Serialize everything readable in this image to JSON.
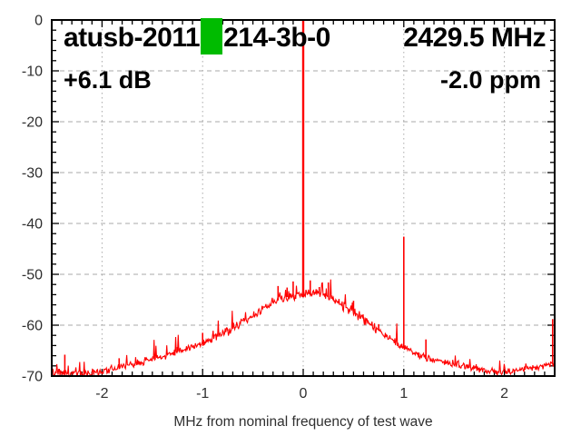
{
  "header": {
    "title_prefix": "atusb-2011",
    "title_suffix": "214-3b-0",
    "center_frequency": "2429.5 MHz",
    "gain": "+6.1 dB",
    "ppm_offset": "-2.0 ppm",
    "marker_color": "#00bb00"
  },
  "chart_data": {
    "type": "line",
    "title": "atusb-2011 [green marker] 214-3b-0 — 2429.5 MHz",
    "xlabel": "MHz from nominal frequency of test wave",
    "ylabel": "",
    "x_range": [
      -2.5,
      2.5
    ],
    "y_range": [
      -70,
      0
    ],
    "x_tick_values": [
      -2,
      -1,
      0,
      1,
      2
    ],
    "x_tick_labels": [
      "-2",
      "-1",
      "0",
      "1",
      "2"
    ],
    "x_minor_step": 0.1,
    "y_tick_values": [
      0,
      -10,
      -20,
      -30,
      -40,
      -50,
      -60,
      -70
    ],
    "y_tick_labels": [
      "0",
      "-10",
      "-20",
      "-30",
      "-40",
      "-50",
      "-60",
      "-70"
    ],
    "y_minor_step": 2,
    "y_grid_values": [
      -10,
      -20,
      -30,
      -40,
      -50,
      -60
    ],
    "grid_on": true,
    "legend": "none",
    "trace_color": "#ff0000",
    "grid_color": "#aaaaaa",
    "axis_color": "#000000",
    "tick_label_color": "#2f2f2f",
    "envelope": [
      [
        -2.5,
        -69.2
      ],
      [
        -2.35,
        -69.6
      ],
      [
        -2.2,
        -69.7
      ],
      [
        -2.05,
        -69.3
      ],
      [
        -1.9,
        -68.6
      ],
      [
        -1.75,
        -68.0
      ],
      [
        -1.6,
        -67.2
      ],
      [
        -1.45,
        -66.5
      ],
      [
        -1.3,
        -65.6
      ],
      [
        -1.15,
        -64.6
      ],
      [
        -1.0,
        -63.6
      ],
      [
        -0.85,
        -62.2
      ],
      [
        -0.7,
        -60.6
      ],
      [
        -0.55,
        -58.8
      ],
      [
        -0.4,
        -56.8
      ],
      [
        -0.3,
        -55.6
      ],
      [
        -0.2,
        -54.7
      ],
      [
        -0.1,
        -54.1
      ],
      [
        0.0,
        -53.8
      ],
      [
        0.1,
        -53.6
      ],
      [
        0.2,
        -54.0
      ],
      [
        0.3,
        -55.0
      ],
      [
        0.4,
        -56.2
      ],
      [
        0.5,
        -57.4
      ],
      [
        0.6,
        -58.9
      ],
      [
        0.7,
        -60.3
      ],
      [
        0.8,
        -61.8
      ],
      [
        0.9,
        -63.2
      ],
      [
        1.0,
        -64.4
      ],
      [
        1.1,
        -65.6
      ],
      [
        1.2,
        -66.3
      ],
      [
        1.35,
        -67.0
      ],
      [
        1.5,
        -67.6
      ],
      [
        1.65,
        -68.2
      ],
      [
        1.8,
        -68.7
      ],
      [
        1.95,
        -69.2
      ],
      [
        2.1,
        -69.0
      ],
      [
        2.25,
        -68.5
      ],
      [
        2.4,
        -68.0
      ],
      [
        2.5,
        -67.6
      ]
    ],
    "spikes": [
      [
        -2.37,
        -65.8
      ],
      [
        -1.83,
        -66.5
      ],
      [
        -1.52,
        -67.0
      ],
      [
        -1.25,
        -64.3
      ],
      [
        -1.0,
        -61.5
      ],
      [
        -0.75,
        -60.8
      ],
      [
        -0.25,
        -52.3
      ],
      [
        -0.16,
        -52.6
      ],
      [
        -0.1,
        -51.4
      ],
      [
        0.07,
        -51.2
      ],
      [
        0.16,
        -52.5
      ],
      [
        0.25,
        -51.6
      ],
      [
        0.5,
        -55.2
      ],
      [
        0.75,
        -59.8
      ],
      [
        1.0,
        -42.6
      ],
      [
        1.22,
        -62.8
      ],
      [
        2.48,
        -58.8
      ]
    ],
    "carrier": {
      "x": 0,
      "peak_db": 0,
      "base_db": -54.5
    }
  }
}
